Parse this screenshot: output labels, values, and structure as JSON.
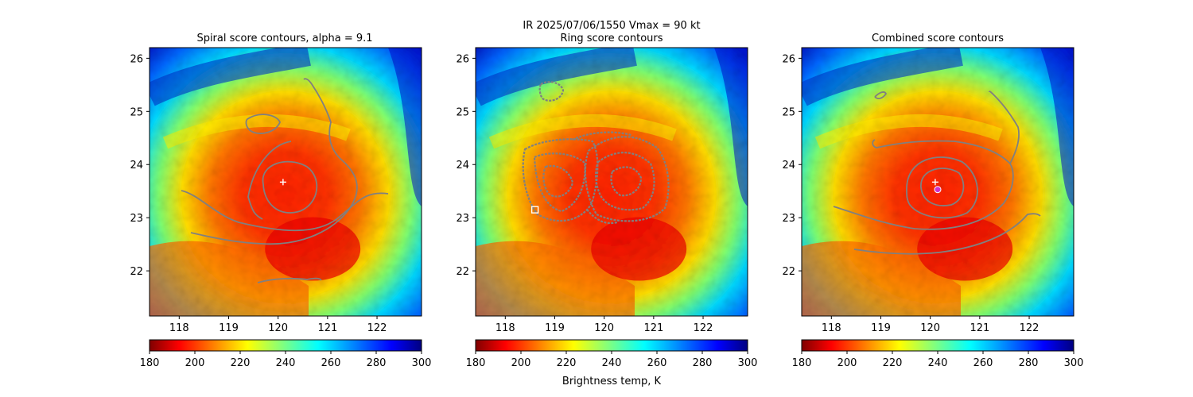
{
  "figure": {
    "suptitle_line1": "IR  2025/07/06/1550    Vmax = 90 kt",
    "colorbar_label": "Brightness temp, K"
  },
  "colors": {
    "contour": "#808080",
    "center_marker": "#ffffff",
    "combined_marker": "#cc33cc"
  },
  "chart_data": [
    {
      "type": "heatmap",
      "title": "Spiral score contours, alpha =  9.1",
      "x_ticks": [
        "118",
        "119",
        "120",
        "121",
        "122"
      ],
      "y_ticks": [
        "22",
        "23",
        "24",
        "25",
        "26"
      ],
      "xlim": [
        117.4,
        122.9
      ],
      "ylim": [
        21.15,
        26.2
      ],
      "center_marker": {
        "lon": 120.1,
        "lat": 23.67,
        "symbol": "+"
      },
      "colorbar": {
        "ticks": [
          "180",
          "200",
          "220",
          "240",
          "260",
          "280",
          "300"
        ],
        "range": [
          180,
          300
        ],
        "cmap": "jet_r"
      }
    },
    {
      "type": "heatmap",
      "title": "Ring score contours",
      "x_ticks": [
        "118",
        "119",
        "120",
        "121",
        "122"
      ],
      "y_ticks": [
        "22",
        "23",
        "24",
        "25",
        "26"
      ],
      "xlim": [
        117.4,
        122.9
      ],
      "ylim": [
        21.15,
        26.2
      ],
      "center_marker": {
        "lon": 118.6,
        "lat": 23.15,
        "symbol": "square"
      },
      "colorbar": {
        "ticks": [
          "180",
          "200",
          "220",
          "240",
          "260",
          "280",
          "300"
        ],
        "range": [
          180,
          300
        ],
        "cmap": "jet_r"
      }
    },
    {
      "type": "heatmap",
      "title": "Combined score contours",
      "x_ticks": [
        "118",
        "119",
        "120",
        "121",
        "122"
      ],
      "y_ticks": [
        "22",
        "23",
        "24",
        "25",
        "26"
      ],
      "xlim": [
        117.4,
        122.9
      ],
      "ylim": [
        21.15,
        26.2
      ],
      "center_marker": {
        "lon": 120.1,
        "lat": 23.67,
        "symbol": "+"
      },
      "combined_marker": {
        "lon": 120.15,
        "lat": 23.53,
        "symbol": "circle"
      },
      "colorbar": {
        "ticks": [
          "180",
          "200",
          "220",
          "240",
          "260",
          "280",
          "300"
        ],
        "range": [
          180,
          300
        ],
        "cmap": "jet_r"
      }
    }
  ]
}
